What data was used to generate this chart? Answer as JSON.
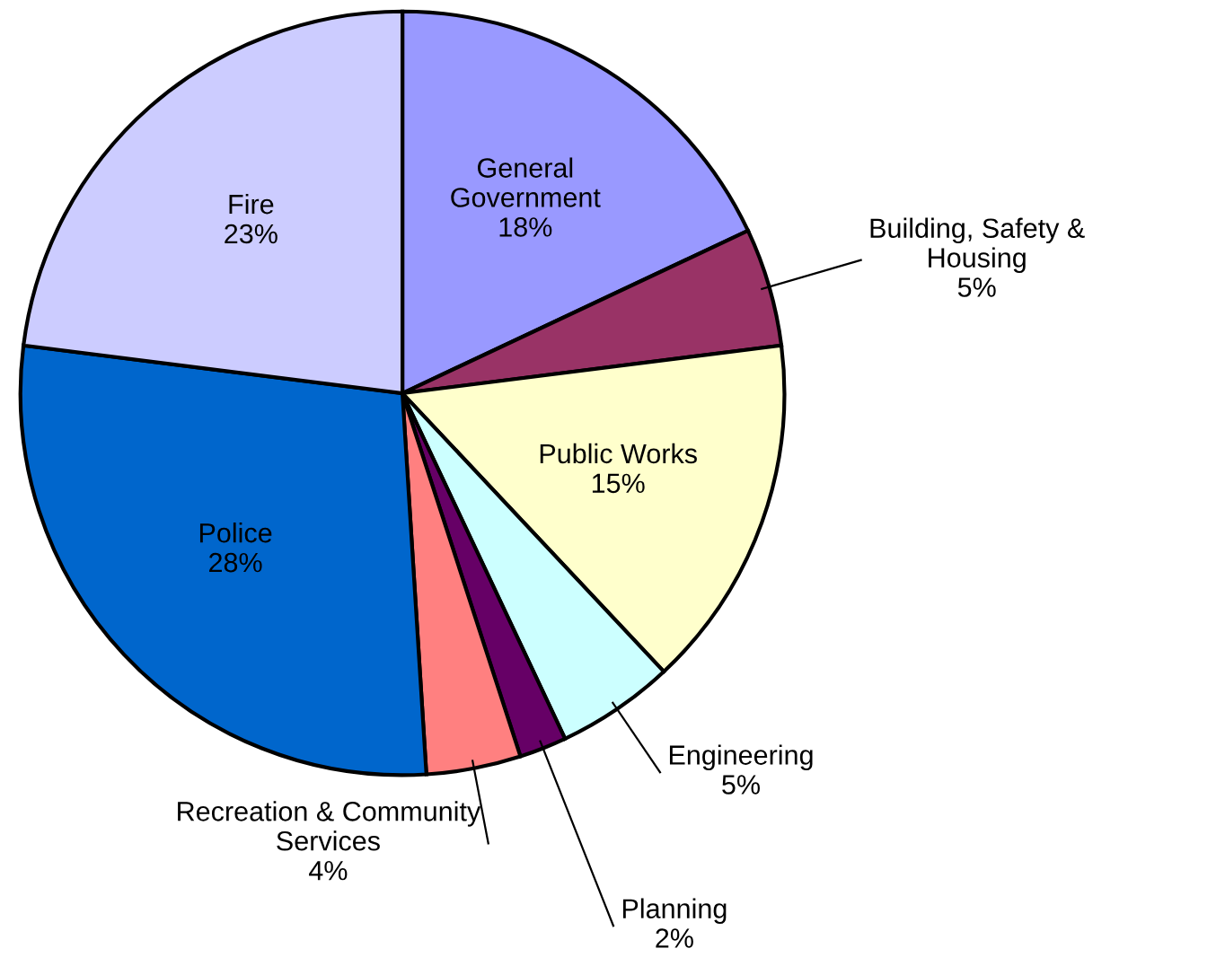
{
  "chart_data": {
    "type": "pie",
    "categories": [
      "General\nGovernment",
      "Building, Safety &\nHousing",
      "Public Works",
      "Engineering",
      "Planning",
      "Recreation & Community\nServices",
      "Police",
      "Fire"
    ],
    "values": [
      18,
      5,
      15,
      5,
      2,
      4,
      28,
      23
    ],
    "value_labels": [
      "18%",
      "5%",
      "15%",
      "5%",
      "2%",
      "4%",
      "28%",
      "23%"
    ],
    "colors": [
      "#9999ff",
      "#993366",
      "#ffffcc",
      "#ccffff",
      "#660066",
      "#ff8080",
      "#0066cc",
      "#ccccff"
    ]
  }
}
